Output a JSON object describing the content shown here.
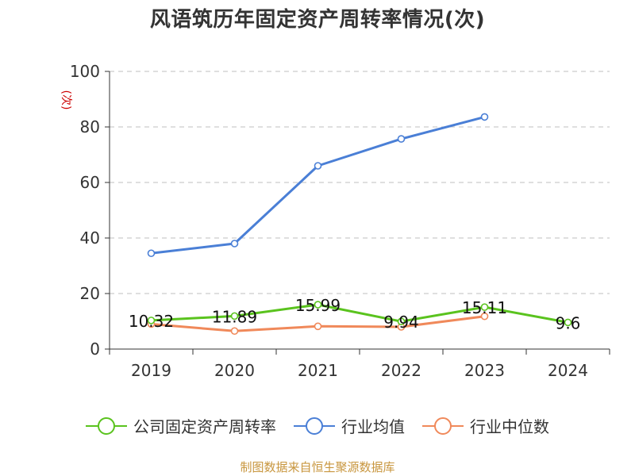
{
  "chart_data": {
    "type": "line",
    "title": "风语筑历年固定资产周转率情况(次)",
    "ylabel": "(次)",
    "xlabel": "",
    "categories": [
      "2019",
      "2020",
      "2021",
      "2022",
      "2023",
      "2024"
    ],
    "ylim": [
      0,
      100
    ],
    "yticks": [
      0,
      20,
      40,
      60,
      80,
      100
    ],
    "grid": true,
    "legend_position": "bottom",
    "series": [
      {
        "name": "公司固定资产周转率",
        "values": [
          10.32,
          11.89,
          15.99,
          9.94,
          15.11,
          9.6
        ],
        "labels": [
          "10.32",
          "11.89",
          "15.99",
          "9.94",
          "15.11",
          "9.6"
        ],
        "color": "#5ac31e"
      },
      {
        "name": "行业均值",
        "values": [
          34.5,
          38.0,
          66.0,
          75.7,
          83.6,
          null
        ],
        "color": "#4a7fd6"
      },
      {
        "name": "行业中位数",
        "values": [
          9.0,
          6.5,
          8.2,
          8.0,
          11.8,
          null
        ],
        "color": "#f0895a"
      }
    ]
  },
  "footer": {
    "source": "制图数据来自恒生聚源数据库"
  }
}
